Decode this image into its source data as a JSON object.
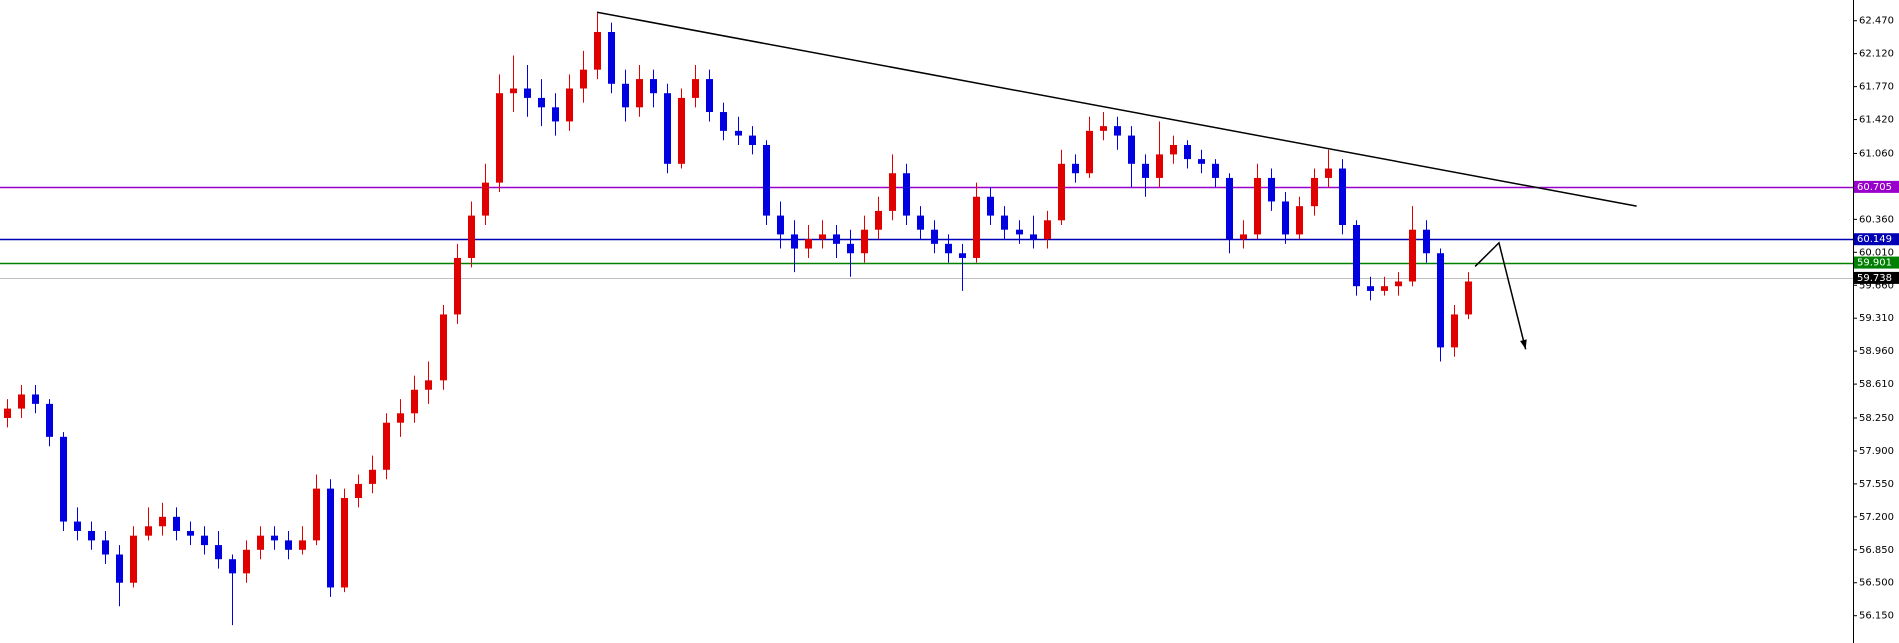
{
  "chart_data": {
    "type": "candlestick",
    "ylim": [
      55.86,
      62.69
    ],
    "xlim": [
      -0.5,
      131.4
    ],
    "up_color": "#e00000",
    "down_color": "#0000e0",
    "yticks": [
      {
        "value": 62.47,
        "label": "62.470"
      },
      {
        "value": 62.12,
        "label": "62.120"
      },
      {
        "value": 61.77,
        "label": "61.770"
      },
      {
        "value": 61.42,
        "label": "61.420"
      },
      {
        "value": 61.06,
        "label": "61.060"
      },
      {
        "value": 60.36,
        "label": "60.360"
      },
      {
        "value": 60.01,
        "label": "60.010"
      },
      {
        "value": 59.66,
        "label": "59.660"
      },
      {
        "value": 59.31,
        "label": "59.310"
      },
      {
        "value": 58.96,
        "label": "58.960"
      },
      {
        "value": 58.61,
        "label": "58.610"
      },
      {
        "value": 58.25,
        "label": "58.250"
      },
      {
        "value": 57.9,
        "label": "57.900"
      },
      {
        "value": 57.55,
        "label": "57.550"
      },
      {
        "value": 57.2,
        "label": "57.200"
      },
      {
        "value": 56.85,
        "label": "56.850"
      },
      {
        "value": 56.5,
        "label": "56.500"
      },
      {
        "value": 56.15,
        "label": "56.150"
      }
    ],
    "levels": [
      {
        "value": 60.705,
        "color": "#9900cc"
      },
      {
        "value": 60.149,
        "color": "#0000b4"
      },
      {
        "value": 59.901,
        "color": "#008000"
      },
      {
        "value": 59.738,
        "color": "#000000"
      }
    ],
    "trendline": {
      "x": [
        42,
        116
      ],
      "y": [
        62.56,
        60.5
      ]
    },
    "arrow": {
      "x": [
        104.5,
        106.2,
        108.1
      ],
      "y": [
        59.86,
        60.11,
        58.98
      ]
    },
    "candles": [
      [
        58.25,
        58.45,
        58.15,
        58.35
      ],
      [
        58.35,
        58.6,
        58.25,
        58.5
      ],
      [
        58.5,
        58.6,
        58.3,
        58.4
      ],
      [
        58.4,
        58.45,
        57.95,
        58.05
      ],
      [
        58.05,
        58.1,
        57.05,
        57.15
      ],
      [
        57.15,
        57.3,
        56.95,
        57.05
      ],
      [
        57.05,
        57.15,
        56.85,
        56.95
      ],
      [
        56.95,
        57.05,
        56.7,
        56.8
      ],
      [
        56.8,
        56.9,
        56.25,
        56.5
      ],
      [
        56.5,
        57.1,
        56.45,
        57.0
      ],
      [
        57.0,
        57.3,
        56.95,
        57.1
      ],
      [
        57.1,
        57.35,
        57.0,
        57.2
      ],
      [
        57.2,
        57.3,
        56.95,
        57.05
      ],
      [
        57.05,
        57.15,
        56.9,
        57.0
      ],
      [
        57.0,
        57.1,
        56.8,
        56.9
      ],
      [
        56.9,
        57.05,
        56.65,
        56.75
      ],
      [
        56.75,
        56.8,
        56.05,
        56.6
      ],
      [
        56.6,
        56.95,
        56.5,
        56.85
      ],
      [
        56.85,
        57.1,
        56.75,
        57.0
      ],
      [
        57.0,
        57.1,
        56.85,
        56.95
      ],
      [
        56.95,
        57.05,
        56.75,
        56.85
      ],
      [
        56.85,
        57.1,
        56.8,
        56.95
      ],
      [
        56.95,
        57.65,
        56.9,
        57.5
      ],
      [
        57.5,
        57.6,
        56.35,
        56.45
      ],
      [
        56.45,
        57.5,
        56.4,
        57.4
      ],
      [
        57.4,
        57.65,
        57.3,
        57.55
      ],
      [
        57.55,
        57.85,
        57.45,
        57.7
      ],
      [
        57.7,
        58.3,
        57.6,
        58.2
      ],
      [
        58.2,
        58.45,
        58.05,
        58.3
      ],
      [
        58.3,
        58.7,
        58.2,
        58.55
      ],
      [
        58.55,
        58.85,
        58.4,
        58.65
      ],
      [
        58.65,
        59.45,
        58.55,
        59.35
      ],
      [
        59.35,
        60.1,
        59.25,
        59.95
      ],
      [
        59.95,
        60.55,
        59.85,
        60.4
      ],
      [
        60.4,
        60.95,
        60.3,
        60.75
      ],
      [
        60.75,
        61.9,
        60.65,
        61.7
      ],
      [
        61.7,
        62.1,
        61.5,
        61.75
      ],
      [
        61.75,
        62.0,
        61.45,
        61.65
      ],
      [
        61.65,
        61.85,
        61.35,
        61.55
      ],
      [
        61.55,
        61.7,
        61.25,
        61.4
      ],
      [
        61.4,
        61.9,
        61.3,
        61.75
      ],
      [
        61.75,
        62.15,
        61.6,
        61.95
      ],
      [
        61.95,
        62.55,
        61.85,
        62.35
      ],
      [
        62.35,
        62.45,
        61.7,
        61.8
      ],
      [
        61.8,
        61.95,
        61.4,
        61.55
      ],
      [
        61.55,
        62.0,
        61.45,
        61.85
      ],
      [
        61.85,
        61.95,
        61.55,
        61.7
      ],
      [
        61.7,
        61.8,
        60.85,
        60.95
      ],
      [
        60.95,
        61.75,
        60.9,
        61.65
      ],
      [
        61.65,
        62.0,
        61.55,
        61.85
      ],
      [
        61.85,
        61.95,
        61.4,
        61.5
      ],
      [
        61.5,
        61.6,
        61.2,
        61.3
      ],
      [
        61.3,
        61.45,
        61.15,
        61.25
      ],
      [
        61.25,
        61.35,
        61.05,
        61.15
      ],
      [
        61.15,
        61.2,
        60.3,
        60.4
      ],
      [
        60.4,
        60.55,
        60.05,
        60.2
      ],
      [
        60.2,
        60.35,
        59.8,
        60.05
      ],
      [
        60.05,
        60.3,
        59.95,
        60.15
      ],
      [
        60.15,
        60.35,
        60.05,
        60.2
      ],
      [
        60.2,
        60.3,
        59.95,
        60.1
      ],
      [
        60.1,
        60.25,
        59.75,
        60.0
      ],
      [
        60.0,
        60.4,
        59.9,
        60.25
      ],
      [
        60.25,
        60.6,
        60.15,
        60.45
      ],
      [
        60.45,
        61.05,
        60.35,
        60.85
      ],
      [
        60.85,
        60.95,
        60.3,
        60.4
      ],
      [
        60.4,
        60.5,
        60.15,
        60.25
      ],
      [
        60.25,
        60.35,
        60.0,
        60.1
      ],
      [
        60.1,
        60.2,
        59.9,
        60.0
      ],
      [
        60.0,
        60.1,
        59.6,
        59.95
      ],
      [
        59.95,
        60.75,
        59.9,
        60.6
      ],
      [
        60.6,
        60.7,
        60.3,
        60.4
      ],
      [
        60.4,
        60.5,
        60.15,
        60.25
      ],
      [
        60.25,
        60.35,
        60.1,
        60.2
      ],
      [
        60.2,
        60.4,
        60.05,
        60.15
      ],
      [
        60.15,
        60.45,
        60.05,
        60.35
      ],
      [
        60.35,
        61.1,
        60.3,
        60.95
      ],
      [
        60.95,
        61.05,
        60.75,
        60.85
      ],
      [
        60.85,
        61.45,
        60.8,
        61.3
      ],
      [
        61.3,
        61.5,
        61.2,
        61.35
      ],
      [
        61.35,
        61.45,
        61.1,
        61.25
      ],
      [
        61.25,
        61.35,
        60.7,
        60.95
      ],
      [
        60.95,
        61.05,
        60.6,
        60.8
      ],
      [
        60.8,
        61.4,
        60.7,
        61.05
      ],
      [
        61.05,
        61.25,
        60.95,
        61.15
      ],
      [
        61.15,
        61.2,
        60.9,
        61.0
      ],
      [
        61.0,
        61.1,
        60.85,
        60.95
      ],
      [
        60.95,
        61.0,
        60.7,
        60.8
      ],
      [
        60.8,
        60.85,
        60.0,
        60.15
      ],
      [
        60.15,
        60.35,
        60.05,
        60.2
      ],
      [
        60.2,
        60.95,
        60.15,
        60.8
      ],
      [
        60.8,
        60.9,
        60.45,
        60.55
      ],
      [
        60.55,
        60.65,
        60.1,
        60.2
      ],
      [
        60.2,
        60.6,
        60.15,
        60.5
      ],
      [
        60.5,
        60.9,
        60.4,
        60.8
      ],
      [
        60.8,
        61.1,
        60.7,
        60.9
      ],
      [
        60.9,
        61.0,
        60.2,
        60.3
      ],
      [
        60.3,
        60.35,
        59.55,
        59.65
      ],
      [
        59.65,
        59.75,
        59.5,
        59.6
      ],
      [
        59.6,
        59.75,
        59.55,
        59.65
      ],
      [
        59.65,
        59.8,
        59.55,
        59.7
      ],
      [
        59.7,
        60.5,
        59.65,
        60.25
      ],
      [
        60.25,
        60.35,
        59.9,
        60.0
      ],
      [
        60.0,
        60.05,
        58.85,
        59.0
      ],
      [
        59.0,
        59.45,
        58.9,
        59.35
      ],
      [
        59.35,
        59.8,
        59.3,
        59.7
      ]
    ]
  }
}
